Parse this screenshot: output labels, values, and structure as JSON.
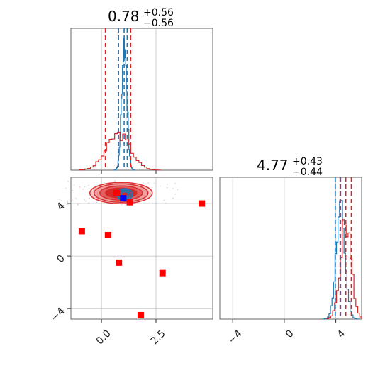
{
  "chart_data": {
    "type": "corner",
    "parameters": [
      {
        "title": {
          "value": "0.78",
          "plus": "+0.56",
          "minus": "−0.56"
        },
        "xlim": [
          -1.4,
          5.1
        ],
        "xticks": [
          {
            "value": 0.0,
            "label": "0.0"
          },
          {
            "value": 2.5,
            "label": "2.5"
          }
        ],
        "series_a_quantiles": [
          0.78,
          1.04,
          1.18
        ],
        "series_b_quantiles": [
          0.18,
          0.78,
          1.34
        ],
        "series_a_color": "#1f77b4",
        "series_b_color": "#d62728"
      },
      {
        "title": {
          "value": "4.77",
          "plus": "+0.43",
          "minus": "−0.44"
        },
        "xlim": [
          -5.0,
          6.0
        ],
        "xticks": [
          {
            "value": -4,
            "label": "−4"
          },
          {
            "value": 0,
            "label": "0"
          },
          {
            "value": 4,
            "label": "4"
          }
        ],
        "series_a_quantiles": [
          3.95,
          4.37,
          4.77
        ],
        "series_b_quantiles": [
          4.33,
          4.77,
          5.2
        ],
        "series_a_color": "#1f77b4",
        "series_b_color": "#d62728"
      }
    ],
    "joint": {
      "xlim": [
        -1.4,
        5.1
      ],
      "ylim": [
        -4.8,
        6.0
      ],
      "xticks": [
        {
          "value": 0.0,
          "label": "0.0"
        },
        {
          "value": 2.5,
          "label": "2.5"
        }
      ],
      "yticks": [
        {
          "value": 4,
          "label": "4"
        },
        {
          "value": 0,
          "label": "0"
        },
        {
          "value": -4,
          "label": "−4"
        }
      ],
      "red_square_points": [
        [
          -0.9,
          1.9
        ],
        [
          0.3,
          1.6
        ],
        [
          0.8,
          -0.5
        ],
        [
          2.8,
          -1.3
        ],
        [
          1.8,
          -4.5
        ],
        [
          4.6,
          4.0
        ],
        [
          0.7,
          4.8
        ],
        [
          1.3,
          4.1
        ]
      ],
      "blue_square_points": [
        [
          1.0,
          4.4
        ]
      ],
      "contour_center": [
        0.9,
        4.8
      ],
      "grid": true
    }
  }
}
